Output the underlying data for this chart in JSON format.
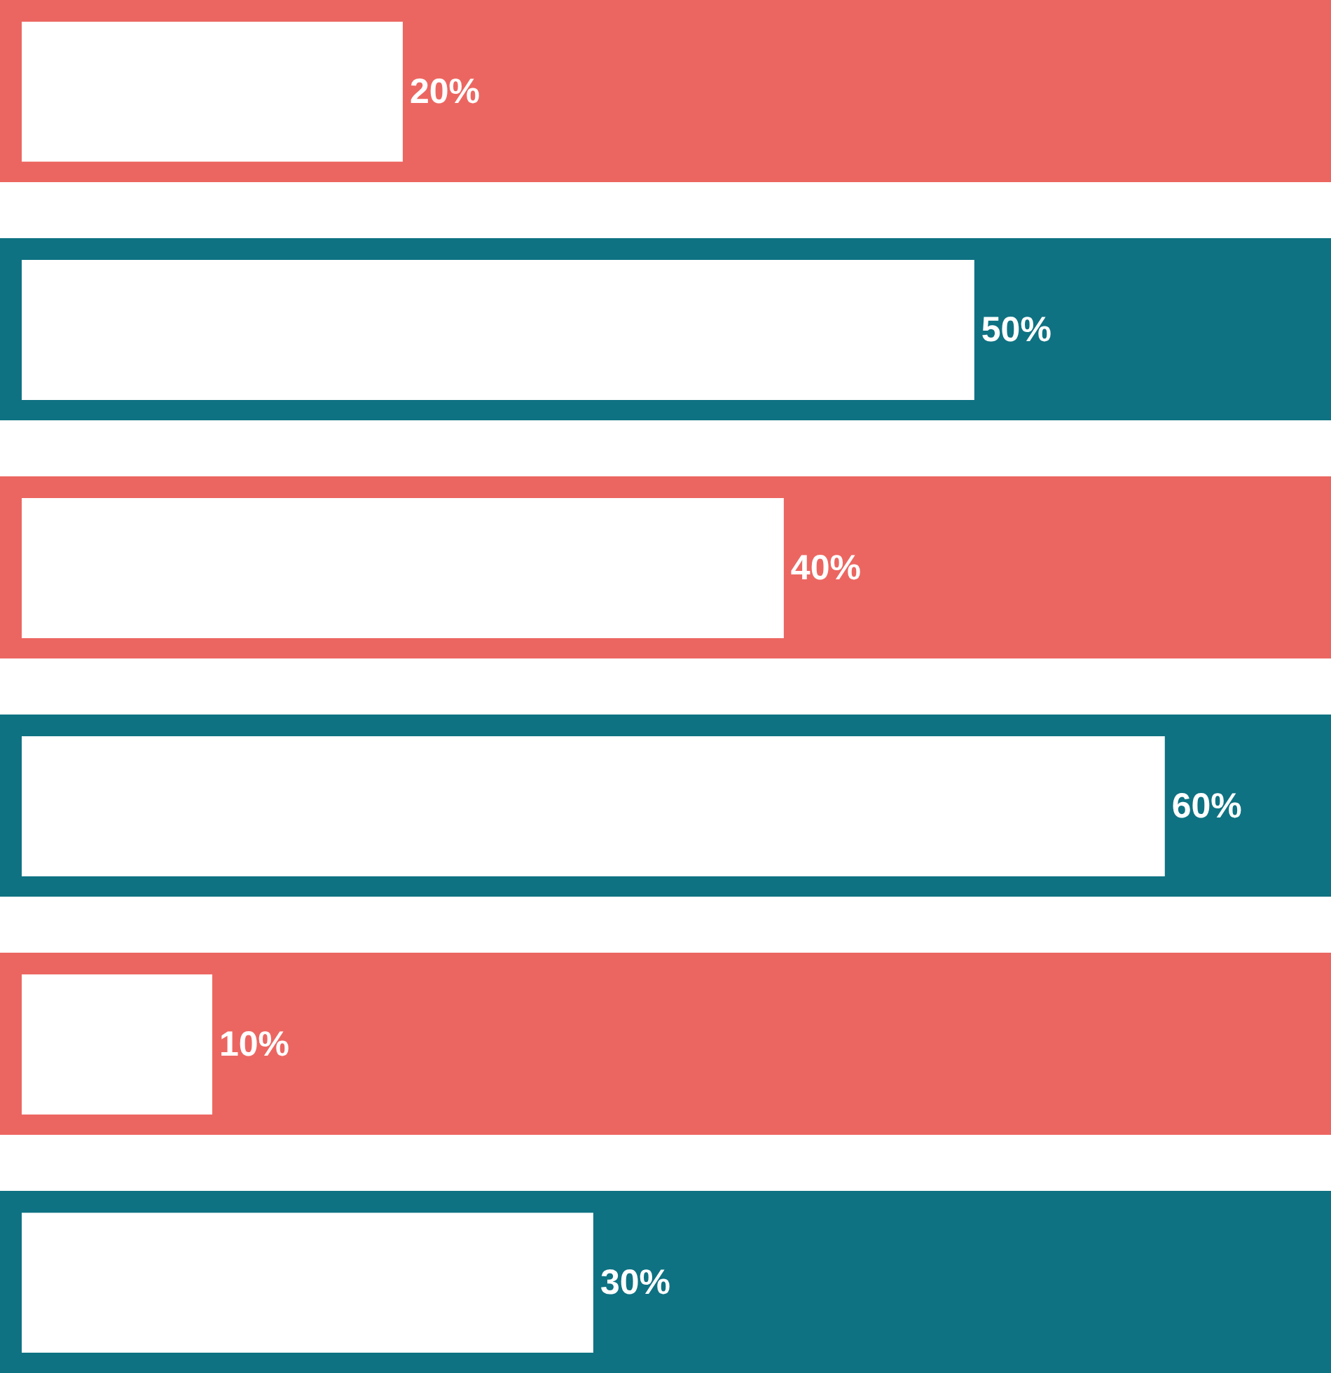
{
  "chart_data": {
    "type": "bar",
    "orientation": "horizontal",
    "tick_labels": false,
    "categories": [
      null,
      null,
      null,
      null,
      null,
      null
    ],
    "color": "#ffffff",
    "values": [
      20,
      50,
      40,
      60,
      10,
      30
    ],
    "value_labels": [
      "20%",
      "50%",
      "40%",
      "60%",
      "10%",
      "30%"
    ]
  }
}
